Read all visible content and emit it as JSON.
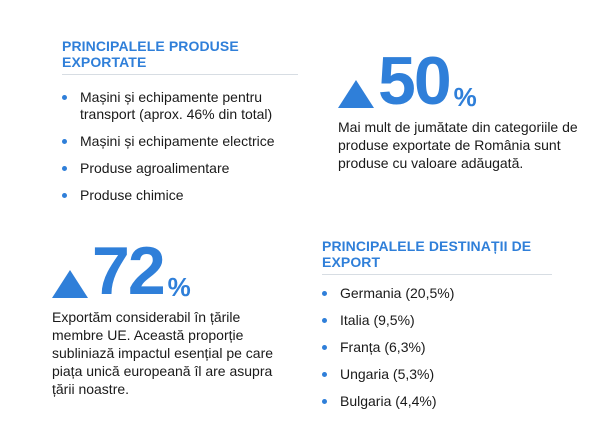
{
  "products": {
    "title": "PRINCIPALELE PRODUSE EXPORTATE",
    "items": [
      "Mașini și echipamente pentru transport (aprox. 46% din total)",
      "Mașini și echipamente electrice",
      "Produse agroalimentare",
      "Produse chimice"
    ]
  },
  "stat50": {
    "value": "50",
    "unit": "%",
    "text": "Mai mult de jumătate din categoriile de produse exportate de România sunt produse cu valoare adăugată."
  },
  "stat72": {
    "value": "72",
    "unit": "%",
    "text": "Exportăm considerabil în țările membre UE. Această proporție subliniază impactul esențial pe care piața unică europeană îl are asupra țării noastre."
  },
  "destinations": {
    "title": "PRINCIPALELE DESTINAȚII DE EXPORT",
    "items": [
      "Germania (20,5%)",
      "Italia (9,5%)",
      "Franța (6,3%)",
      "Ungaria (5,3%)",
      "Bulgaria (4,4%)"
    ]
  },
  "colors": {
    "accent": "#2f7fd9",
    "text": "#1a1a1a",
    "rule": "#d7dde3"
  },
  "icons": {
    "stat_marker": "triangle-up-icon",
    "bullet": "bullet-dot-icon"
  }
}
